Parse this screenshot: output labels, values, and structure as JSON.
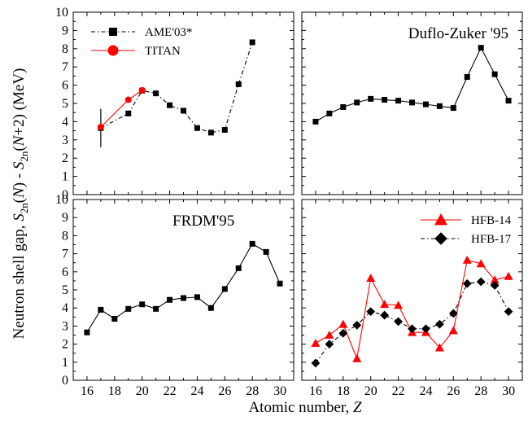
{
  "figure": {
    "ylabel_parts": [
      "Neutron shell gap, ",
      "S",
      "2n",
      "(",
      "N",
      ") - ",
      "S",
      "2n",
      "(",
      "N",
      "+2) (MeV)"
    ],
    "xlabel_parts": [
      "Atomic number, ",
      "Z"
    ]
  },
  "chart_data": [
    {
      "type": "line",
      "panel": "top-left",
      "title": "",
      "xlim": [
        15,
        31
      ],
      "ylim": [
        0,
        10
      ],
      "xticks": [
        16,
        18,
        20,
        22,
        24,
        26,
        28,
        30
      ],
      "yticks": [
        0,
        1,
        2,
        3,
        4,
        5,
        6,
        7,
        8,
        9,
        10
      ],
      "show_xtick_labels": false,
      "show_ytick_labels": true,
      "legend_position": "top-left",
      "series": [
        {
          "name": "AME'03*",
          "color": "#000000",
          "marker": "square",
          "line_style": "dash-dot",
          "x": [
            17,
            19,
            20,
            21,
            22,
            23,
            24,
            25,
            26,
            27,
            28
          ],
          "y": [
            3.65,
            4.45,
            5.7,
            5.55,
            4.9,
            4.6,
            3.65,
            3.4,
            3.55,
            6.05,
            8.35
          ],
          "error_bars": [
            {
              "x": 17,
              "low": 2.6,
              "high": 4.7
            }
          ]
        },
        {
          "name": "TITAN",
          "color": "#ff0000",
          "marker": "circle",
          "line_style": "solid",
          "x": [
            17,
            19,
            20
          ],
          "y": [
            3.7,
            5.2,
            5.72
          ]
        }
      ]
    },
    {
      "type": "line",
      "panel": "top-right",
      "title": "Duflo-Zuker '95",
      "xlim": [
        15,
        31
      ],
      "ylim": [
        0,
        10
      ],
      "xticks": [
        16,
        18,
        20,
        22,
        24,
        26,
        28,
        30
      ],
      "yticks": [
        0,
        1,
        2,
        3,
        4,
        5,
        6,
        7,
        8,
        9,
        10
      ],
      "show_xtick_labels": false,
      "show_ytick_labels": false,
      "series": [
        {
          "color": "#000000",
          "marker": "square",
          "line_style": "solid",
          "x": [
            16,
            17,
            18,
            19,
            20,
            21,
            22,
            23,
            24,
            25,
            26,
            27,
            28,
            29,
            30
          ],
          "y": [
            4.0,
            4.45,
            4.8,
            5.05,
            5.25,
            5.2,
            5.15,
            5.05,
            4.95,
            4.85,
            4.75,
            6.45,
            8.05,
            6.6,
            5.15
          ]
        }
      ]
    },
    {
      "type": "line",
      "panel": "bottom-left",
      "title": "FRDM'95",
      "xlim": [
        15,
        31
      ],
      "ylim": [
        0,
        10
      ],
      "xticks": [
        16,
        18,
        20,
        22,
        24,
        26,
        28,
        30
      ],
      "yticks": [
        0,
        1,
        2,
        3,
        4,
        5,
        6,
        7,
        8,
        9,
        10
      ],
      "show_xtick_labels": true,
      "show_ytick_labels": true,
      "series": [
        {
          "color": "#000000",
          "marker": "square",
          "line_style": "solid",
          "x": [
            16,
            17,
            18,
            19,
            20,
            21,
            22,
            23,
            24,
            25,
            26,
            27,
            28,
            29,
            30
          ],
          "y": [
            2.65,
            3.9,
            3.4,
            3.95,
            4.2,
            3.95,
            4.45,
            4.55,
            4.6,
            4.0,
            5.05,
            6.2,
            7.55,
            7.1,
            5.35
          ]
        }
      ]
    },
    {
      "type": "line",
      "panel": "bottom-right",
      "title": "",
      "xlim": [
        15,
        31
      ],
      "ylim": [
        0,
        10
      ],
      "xticks": [
        16,
        18,
        20,
        22,
        24,
        26,
        28,
        30
      ],
      "yticks": [
        0,
        1,
        2,
        3,
        4,
        5,
        6,
        7,
        8,
        9,
        10
      ],
      "show_xtick_labels": true,
      "show_ytick_labels": false,
      "legend_position": "top-right",
      "series": [
        {
          "name": "HFB-14",
          "color": "#ff0000",
          "marker": "triangle",
          "line_style": "solid",
          "x": [
            16,
            17,
            18,
            19,
            20,
            21,
            22,
            23,
            24,
            25,
            26,
            27,
            28,
            29,
            30
          ],
          "y": [
            2.05,
            2.5,
            3.1,
            1.2,
            5.65,
            4.2,
            4.15,
            2.65,
            2.65,
            1.8,
            2.75,
            6.65,
            6.45,
            5.55,
            5.75
          ]
        },
        {
          "name": "HFB-17",
          "color": "#000000",
          "marker": "diamond",
          "line_style": "dash-dot",
          "x": [
            16,
            17,
            18,
            19,
            20,
            21,
            22,
            23,
            24,
            25,
            26,
            27,
            28,
            29,
            30
          ],
          "y": [
            0.95,
            2.0,
            2.6,
            3.05,
            3.8,
            3.6,
            3.25,
            2.85,
            2.85,
            3.1,
            3.7,
            5.35,
            5.45,
            5.25,
            3.8
          ]
        }
      ]
    }
  ]
}
